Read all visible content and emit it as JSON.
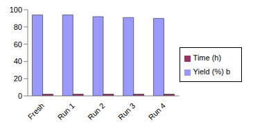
{
  "chart_data": {
    "type": "bar",
    "categories": [
      "Fresh",
      "Run 1",
      "Run 2",
      "Run 3",
      "Run 4"
    ],
    "series": [
      {
        "name": "Yield (%) b",
        "color": "#9999ff",
        "values": [
          94,
          94,
          92,
          91,
          90
        ]
      },
      {
        "name": "Time (h)",
        "color": "#993366",
        "values": [
          2,
          2,
          2,
          2,
          2
        ]
      }
    ],
    "ylim": [
      0,
      100
    ],
    "yticks": [
      0,
      20,
      40,
      60,
      80,
      100
    ],
    "grid": false,
    "legend": "right"
  }
}
